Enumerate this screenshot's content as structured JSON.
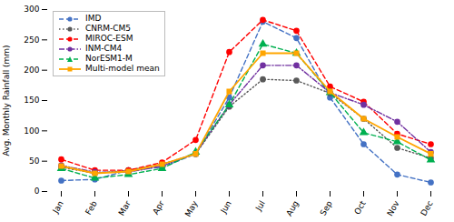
{
  "chart_data": {
    "type": "line",
    "categories": [
      "Jan",
      "Feb",
      "Mar",
      "Apr",
      "May",
      "Jun",
      "Jul",
      "Aug",
      "Sep",
      "Oct",
      "Nov",
      "Dec"
    ],
    "series": [
      {
        "name": "IMD",
        "color": "#4472C4",
        "marker": "circle",
        "line_style": "dashed",
        "values": [
          18,
          20,
          35,
          40,
          62,
          155,
          280,
          253,
          155,
          78,
          28,
          15
        ]
      },
      {
        "name": "CNRM-CM5",
        "color": "#595959",
        "marker": "circle",
        "line_style": "dotted",
        "values": [
          40,
          30,
          35,
          45,
          62,
          140,
          185,
          183,
          162,
          120,
          72,
          55
        ]
      },
      {
        "name": "MIROC-ESM",
        "color": "#FF0000",
        "marker": "circle",
        "line_style": "dashed",
        "values": [
          53,
          35,
          35,
          48,
          85,
          230,
          283,
          265,
          173,
          148,
          95,
          78
        ]
      },
      {
        "name": "INM-CM4",
        "color": "#7030A0",
        "marker": "circle",
        "line_style": "dashdot",
        "values": [
          43,
          32,
          32,
          42,
          63,
          143,
          208,
          208,
          163,
          143,
          115,
          65
        ]
      },
      {
        "name": "NorESM1-M",
        "color": "#00B050",
        "marker": "triangle",
        "line_style": "dashed",
        "values": [
          38,
          22,
          28,
          38,
          65,
          143,
          243,
          228,
          163,
          97,
          82,
          52
        ]
      },
      {
        "name": "Multi-model mean",
        "color": "#FFA500",
        "marker": "square",
        "line_style": "solid",
        "values": [
          42,
          30,
          33,
          45,
          62,
          165,
          228,
          228,
          165,
          120,
          90,
          62
        ]
      }
    ],
    "ylabel": "Avg. Monthly Rainfall (mm)",
    "ylim": [
      0,
      300
    ],
    "yticks": [
      0,
      50,
      100,
      150,
      200,
      250,
      300
    ],
    "grid": false,
    "legend": "upper left"
  }
}
